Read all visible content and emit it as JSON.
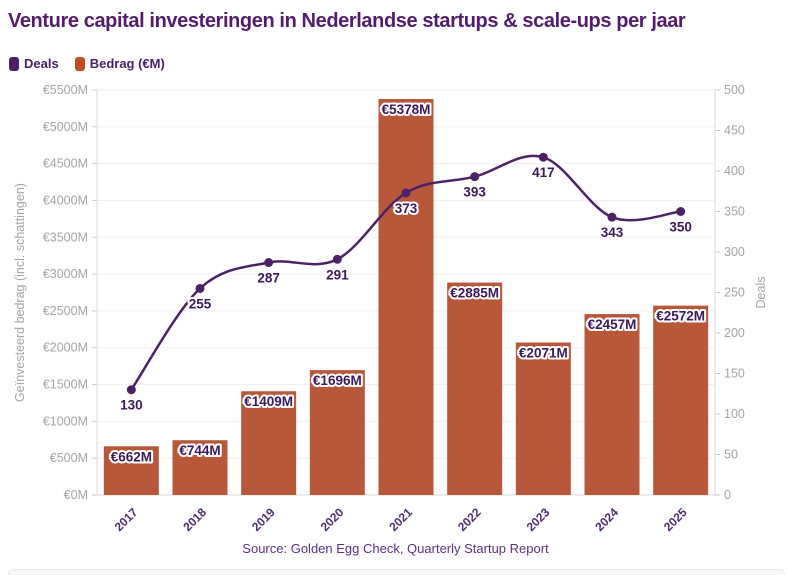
{
  "page": {
    "title": "Venture capital investeringen in Nederlandse startups & scale-ups per jaar",
    "source": "Source: Golden Egg Check, Quarterly Startup Report"
  },
  "colors": {
    "title_purple": "#531d6b",
    "line_purple": "#4d2166",
    "label_purple": "#3c1a59",
    "bar_orange": "#b7583a",
    "legend_deals_swatch": "#4a1f63",
    "legend_bedrag_swatch": "#bf4f27",
    "axis_text_gray": "#a8a2a5",
    "gridline": "#f4eef0"
  },
  "chart_data": {
    "type": "combo-bar-line",
    "title": "Venture capital investeringen in Nederlandse startups & scale-ups per jaar",
    "categories": [
      "2017",
      "2018",
      "2019",
      "2020",
      "2021",
      "2022",
      "2023",
      "2024",
      "2025"
    ],
    "series": [
      {
        "name": "Deals",
        "type": "line",
        "axis": "right",
        "color": "#4d2166",
        "values": [
          130,
          255,
          287,
          291,
          373,
          393,
          417,
          343,
          350
        ],
        "label_prefix": "",
        "label_suffix": ""
      },
      {
        "name": "Bedrag (€M)",
        "type": "bar",
        "axis": "left",
        "color": "#b7583a",
        "values": [
          662,
          744,
          1409,
          1696,
          5378,
          2885,
          2071,
          2457,
          2572
        ],
        "label_prefix": "€",
        "label_suffix": "M"
      }
    ],
    "left_axis": {
      "title": "Geïnvesteerd bedrag (incl. schattingen)",
      "min": 0,
      "max": 5500,
      "step": 500,
      "tick_prefix": "€",
      "tick_suffix": "M"
    },
    "right_axis": {
      "title": "Deals",
      "min": 0,
      "max": 500,
      "step": 50,
      "tick_prefix": "",
      "tick_suffix": ""
    },
    "grid": true,
    "legend_position": "top-left",
    "source": "Source: Golden Egg Check, Quarterly Startup Report"
  }
}
